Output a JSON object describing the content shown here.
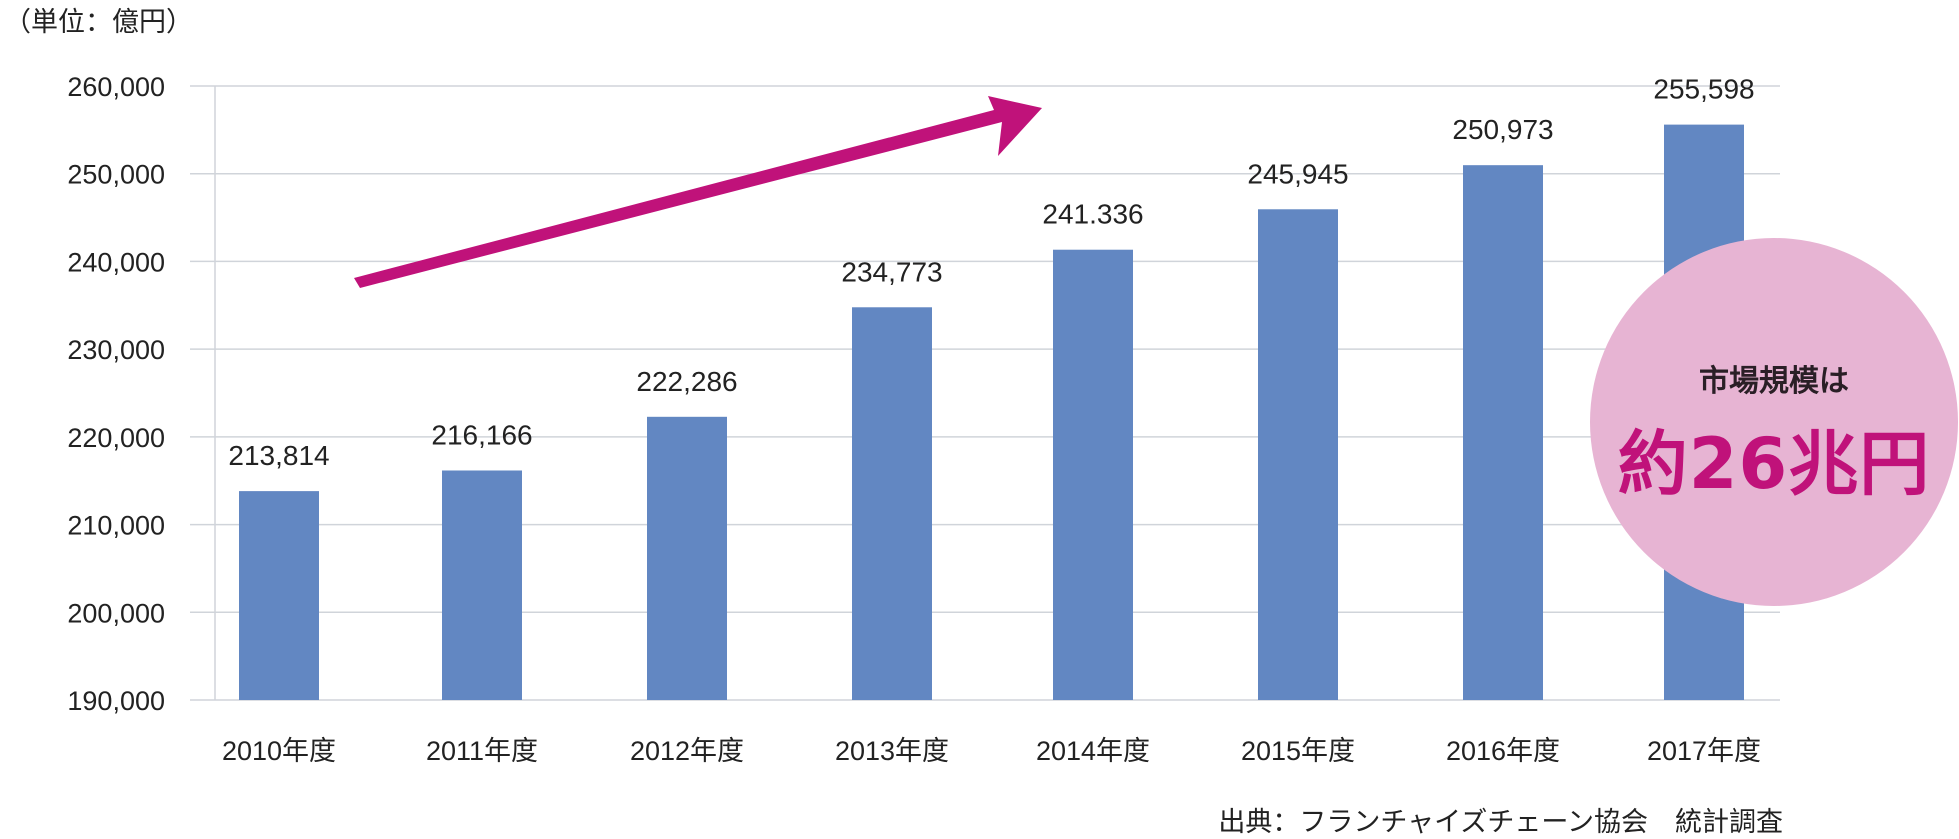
{
  "unit_label": "（単位：億円）",
  "source_label": "出典：フランチャイズチェーン協会　統計調査",
  "badge": {
    "line1": "市場規模は",
    "line2": "約26兆円"
  },
  "colors": {
    "bar": "#6287c2",
    "arrow": "#c0127a",
    "grid": "#d0d4da",
    "badge_bg": "#e7b4d3",
    "badge_text": "#c0127a"
  },
  "chart_data": {
    "type": "bar",
    "title": "",
    "xlabel": "",
    "ylabel": "",
    "ylim": [
      190000,
      260000
    ],
    "yticks": [
      "190,000",
      "200,000",
      "210,000",
      "220,000",
      "230,000",
      "240,000",
      "250,000",
      "260,000"
    ],
    "categories": [
      "2010年度",
      "2011年度",
      "2012年度",
      "2013年度",
      "2014年度",
      "2015年度",
      "2016年度",
      "2017年度"
    ],
    "values": [
      213814,
      216166,
      222286,
      234773,
      241336,
      245945,
      250973,
      255598
    ],
    "value_labels": [
      "213,814",
      "216,166",
      "222,286",
      "234,773",
      "241.336",
      "245,945",
      "250,973",
      "255,598"
    ],
    "grid": true,
    "legend": "none",
    "annotations": [
      "upward trend arrow"
    ]
  }
}
